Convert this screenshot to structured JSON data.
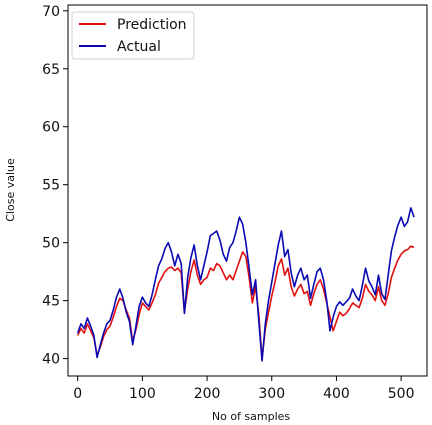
{
  "chart_data": {
    "type": "line",
    "title": "",
    "xlabel": "No of samples",
    "ylabel": "Close value",
    "xlim": [
      -15,
      540
    ],
    "ylim": [
      38.5,
      70.5
    ],
    "xticks": [
      0,
      100,
      200,
      300,
      400,
      500
    ],
    "yticks": [
      40,
      45,
      50,
      55,
      60,
      65,
      70
    ],
    "grid": false,
    "legend_position": "top-left",
    "colors": {
      "prediction": "#e01010",
      "actual": "#0a0ab4"
    },
    "x": [
      0,
      5,
      10,
      15,
      20,
      25,
      30,
      35,
      40,
      45,
      50,
      55,
      60,
      65,
      70,
      75,
      80,
      85,
      90,
      95,
      100,
      105,
      110,
      115,
      120,
      125,
      130,
      135,
      140,
      145,
      150,
      155,
      160,
      165,
      170,
      175,
      180,
      185,
      190,
      195,
      200,
      205,
      210,
      215,
      220,
      225,
      230,
      235,
      240,
      245,
      250,
      255,
      260,
      265,
      270,
      275,
      280,
      285,
      290,
      295,
      300,
      305,
      310,
      315,
      320,
      325,
      330,
      335,
      340,
      345,
      350,
      355,
      360,
      365,
      370,
      375,
      380,
      385,
      390,
      395,
      400,
      405,
      410,
      415,
      420,
      425,
      430,
      435,
      440,
      445,
      450,
      455,
      460,
      465,
      470,
      475,
      480,
      485,
      490,
      495,
      500,
      505,
      510,
      515,
      520
    ],
    "series": [
      {
        "name": "Prediction",
        "values": [
          42.0,
          42.6,
          42.2,
          43.0,
          42.4,
          41.8,
          40.3,
          41.0,
          41.9,
          42.5,
          42.8,
          43.6,
          44.5,
          45.2,
          45.0,
          44.2,
          43.5,
          41.5,
          42.5,
          43.8,
          44.8,
          44.5,
          44.2,
          44.8,
          45.5,
          46.5,
          47.0,
          47.5,
          47.8,
          47.9,
          47.6,
          47.8,
          47.4,
          44.0,
          46.0,
          47.5,
          48.5,
          47.2,
          46.4,
          46.8,
          47.0,
          47.8,
          47.6,
          48.2,
          48.0,
          47.4,
          46.8,
          47.2,
          46.8,
          47.6,
          48.4,
          49.2,
          48.8,
          47.0,
          44.8,
          46.2,
          43.8,
          40.0,
          42.5,
          44.0,
          45.4,
          46.6,
          48.0,
          48.6,
          47.2,
          47.8,
          46.2,
          45.4,
          46.0,
          46.4,
          45.6,
          45.8,
          44.6,
          45.6,
          46.4,
          46.8,
          46.0,
          44.8,
          43.6,
          42.4,
          43.2,
          44.0,
          43.7,
          43.9,
          44.3,
          44.8,
          44.6,
          44.4,
          45.2,
          46.4,
          45.8,
          45.5,
          45.0,
          46.2,
          45.0,
          44.6,
          45.6,
          47.0,
          47.8,
          48.5,
          49.0,
          49.3,
          49.4,
          49.7,
          49.6
        ]
      },
      {
        "name": "Actual",
        "values": [
          42.2,
          43.0,
          42.6,
          43.5,
          42.8,
          42.0,
          40.1,
          41.2,
          42.2,
          43.0,
          43.3,
          44.2,
          45.3,
          46.0,
          45.2,
          44.0,
          43.2,
          41.2,
          42.8,
          44.5,
          45.3,
          44.8,
          44.5,
          45.5,
          46.8,
          48.0,
          48.6,
          49.5,
          50.0,
          49.2,
          48.0,
          49.0,
          48.2,
          43.9,
          47.0,
          48.7,
          49.8,
          48.0,
          46.8,
          48.0,
          49.2,
          50.6,
          50.8,
          51.0,
          50.2,
          49.0,
          48.4,
          49.6,
          50.0,
          51.0,
          52.2,
          51.6,
          50.0,
          47.8,
          45.5,
          46.8,
          43.2,
          39.8,
          43.0,
          45.0,
          46.6,
          48.2,
          49.8,
          51.0,
          48.8,
          49.4,
          47.4,
          46.2,
          47.2,
          47.8,
          46.8,
          47.2,
          45.2,
          46.4,
          47.5,
          47.8,
          46.8,
          45.0,
          42.4,
          43.6,
          44.5,
          44.9,
          44.6,
          44.9,
          45.2,
          46.0,
          45.4,
          45.0,
          46.3,
          47.8,
          46.7,
          46.2,
          45.5,
          47.2,
          45.6,
          45.1,
          47.2,
          49.3,
          50.5,
          51.5,
          52.2,
          51.4,
          51.8,
          53.0,
          52.2
        ]
      }
    ]
  }
}
